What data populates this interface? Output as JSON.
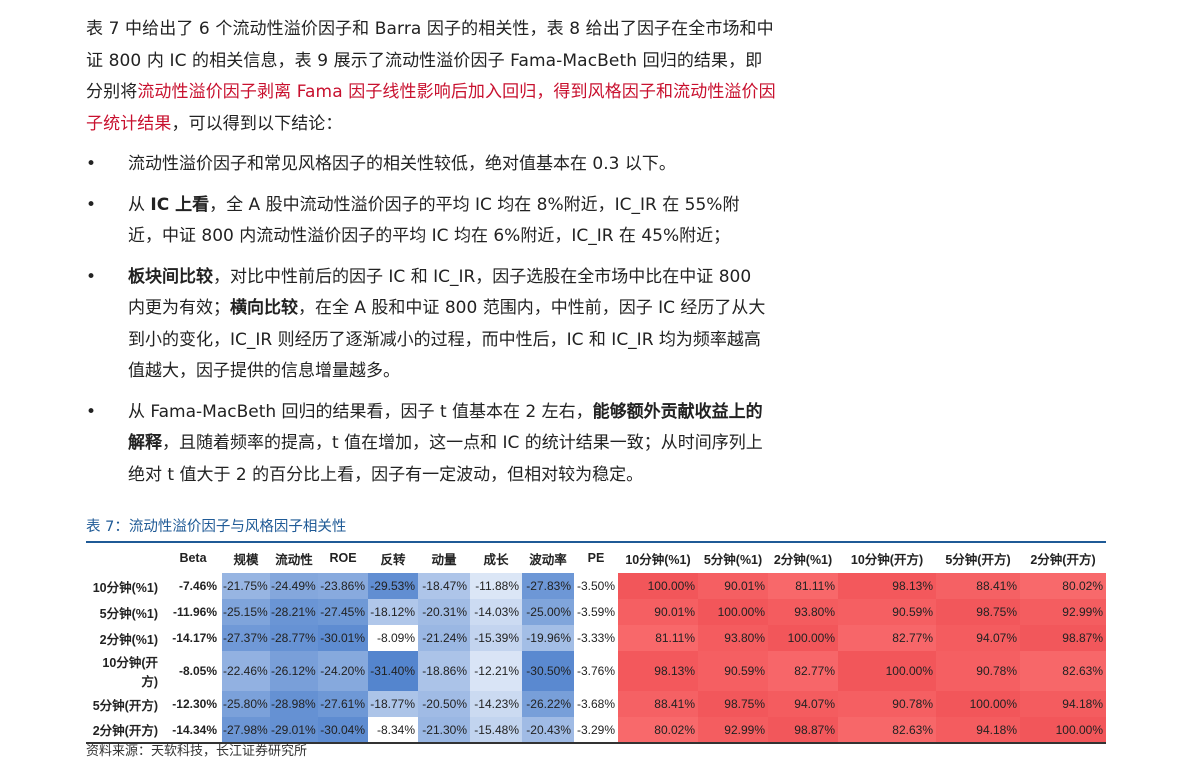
{
  "body": {
    "intro_plain1": "表 7 中给出了 6 个流动性溢价因子和 Barra 因子的相关性，表 8 给出了因子在全市场和中证 800 内 IC 的相关信息，表 9 展示了流动性溢价因子 Fama-MacBeth 回归的结果，即分别将",
    "intro_highlight": "流动性溢价因子剥离 Fama 因子线性影响后加入回归，得到风格因子和流动性溢价因子统计结果",
    "intro_plain2": "，可以得到以下结论：",
    "bullets": [
      {
        "dot": "•",
        "p1": "流动性溢价因子和常见风格因子的相关性较低，绝对值基本在 0.3 以下。"
      },
      {
        "dot": "•",
        "p1": "从 ",
        "b1": "IC 上看",
        "p2": "，全 A 股中流动性溢价因子的平均 IC 均在 8%附近，IC_IR 在 55%附近，中证 800 内流动性溢价因子的平均 IC 均在 6%附近，IC_IR 在 45%附近；"
      },
      {
        "dot": "•",
        "b1": "板块间比较",
        "p1": "，对比中性前后的因子 IC 和 IC_IR，因子选股在全市场中比在中证 800 内更为有效；",
        "b2": "横向比较",
        "p2": "，在全 A 股和中证 800 范围内，中性前，因子 IC 经历了从大到小的变化，IC_IR 则经历了逐渐减小的过程，而中性后，IC 和 IC_IR 均为频率越高值越大，因子提供的信息增量越多。"
      },
      {
        "dot": "•",
        "p1": "从 Fama-MacBeth 回归的结果看，因子 t 值基本在 2 左右，",
        "b1": "能够额外贡献收益上的解释",
        "p2": "，且随着频率的提高，t 值在增加，这一点和 IC 的统计结果一致；从时间序列上绝对 t 值大于 2 的百分比上看，因子有一定波动，但相对较为稳定。"
      }
    ]
  },
  "table_caption": "表 7：流动性溢价因子与风格因子相关性",
  "table": {
    "headers": [
      "",
      "Beta",
      "规模",
      "流动性",
      "ROE",
      "反转",
      "动量",
      "成长",
      "波动率",
      "PE",
      "10分钟(%1)",
      "5分钟(%1)",
      "2分钟(%1)",
      "10分钟(开方)",
      "5分钟(开方)",
      "2分钟(开方)"
    ],
    "rows": [
      {
        "label": "10分钟(%1)",
        "cells": [
          "-7.46%",
          "-21.75%",
          "-24.49%",
          "-23.86%",
          "-29.53%",
          "-18.47%",
          "-11.88%",
          "-27.83%",
          "-3.50%",
          "100.00%",
          "90.01%",
          "81.11%",
          "98.13%",
          "88.41%",
          "80.02%"
        ]
      },
      {
        "label": "5分钟(%1)",
        "cells": [
          "-11.96%",
          "-25.15%",
          "-28.21%",
          "-27.45%",
          "-18.12%",
          "-20.31%",
          "-14.03%",
          "-25.00%",
          "-3.59%",
          "90.01%",
          "100.00%",
          "93.80%",
          "90.59%",
          "98.75%",
          "92.99%"
        ]
      },
      {
        "label": "2分钟(%1)",
        "cells": [
          "-14.17%",
          "-27.37%",
          "-28.77%",
          "-30.01%",
          "-8.09%",
          "-21.24%",
          "-15.39%",
          "-19.96%",
          "-3.33%",
          "81.11%",
          "93.80%",
          "100.00%",
          "82.77%",
          "94.07%",
          "98.87%"
        ]
      },
      {
        "label": "10分钟(开方)",
        "cells": [
          "-8.05%",
          "-22.46%",
          "-26.12%",
          "-24.20%",
          "-31.40%",
          "-18.86%",
          "-12.21%",
          "-30.50%",
          "-3.76%",
          "98.13%",
          "90.59%",
          "82.77%",
          "100.00%",
          "90.78%",
          "82.63%"
        ]
      },
      {
        "label": "5分钟(开方)",
        "cells": [
          "-12.30%",
          "-25.80%",
          "-28.98%",
          "-27.61%",
          "-18.77%",
          "-20.50%",
          "-14.23%",
          "-26.22%",
          "-3.68%",
          "88.41%",
          "98.75%",
          "94.07%",
          "90.78%",
          "100.00%",
          "94.18%"
        ]
      },
      {
        "label": "2分钟(开方)",
        "cells": [
          "-14.34%",
          "-27.98%",
          "-29.01%",
          "-30.04%",
          "-8.34%",
          "-21.30%",
          "-15.48%",
          "-20.43%",
          "-3.29%",
          "80.02%",
          "92.99%",
          "98.87%",
          "82.63%",
          "94.18%",
          "100.00%"
        ]
      }
    ]
  },
  "source_note": "资料来源：天软科技，长江证券研究所",
  "colors": {
    "highlight": "#c8102e",
    "caption": "#1f5a96",
    "neg": "#5b8fd6",
    "pos": "#f2585c"
  }
}
